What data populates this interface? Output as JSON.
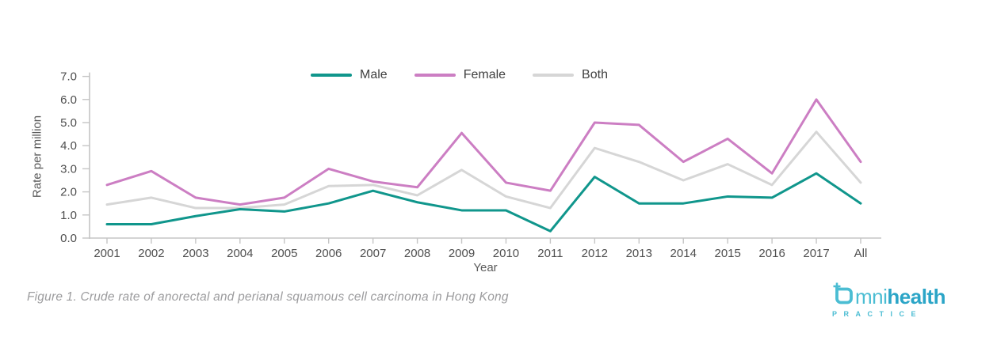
{
  "figure": {
    "caption": "Figure 1. Crude rate of anorectal and perianal squamous cell carcinoma in Hong Kong"
  },
  "logo": {
    "prefix": "mni",
    "suffix": "health",
    "subtext": "PRACTICE",
    "light_blue": "#4bbdd3",
    "dark_blue": "#2ba5c7"
  },
  "chart_data": {
    "type": "line",
    "title": "",
    "xlabel": "Year",
    "ylabel": "Rate per million",
    "ylim": [
      0,
      7
    ],
    "y_tick_labels": [
      "0.0",
      "1.0",
      "2.0",
      "3.0",
      "4.0",
      "5.0",
      "6.0",
      "7.0"
    ],
    "categories": [
      "2001",
      "2002",
      "2003",
      "2004",
      "2005",
      "2006",
      "2007",
      "2008",
      "2009",
      "2010",
      "2011",
      "2012",
      "2013",
      "2014",
      "2015",
      "2016",
      "2017",
      "All"
    ],
    "series": [
      {
        "name": "Both",
        "color": "#d6d6d6",
        "values": [
          1.45,
          1.75,
          1.3,
          1.3,
          1.45,
          2.25,
          2.3,
          1.85,
          2.95,
          1.8,
          1.3,
          3.9,
          3.3,
          2.5,
          3.2,
          2.3,
          4.6,
          2.4
        ]
      },
      {
        "name": "Female",
        "color": "#cc7ec3",
        "values": [
          2.3,
          2.9,
          1.75,
          1.45,
          1.75,
          3.0,
          2.45,
          2.2,
          4.55,
          2.4,
          2.05,
          5.0,
          4.9,
          3.3,
          4.3,
          2.8,
          6.0,
          3.3
        ]
      },
      {
        "name": "Male",
        "color": "#10968c",
        "values": [
          0.6,
          0.6,
          0.95,
          1.25,
          1.15,
          1.5,
          2.05,
          1.55,
          1.2,
          1.2,
          0.3,
          2.65,
          1.5,
          1.5,
          1.8,
          1.75,
          2.8,
          1.5
        ]
      }
    ],
    "legend_order": [
      "Male",
      "Female",
      "Both"
    ],
    "legend_position": "top-center",
    "grid": false,
    "axis_color": "#c5c5c5",
    "tick_label_color": "#4f4f4f"
  }
}
